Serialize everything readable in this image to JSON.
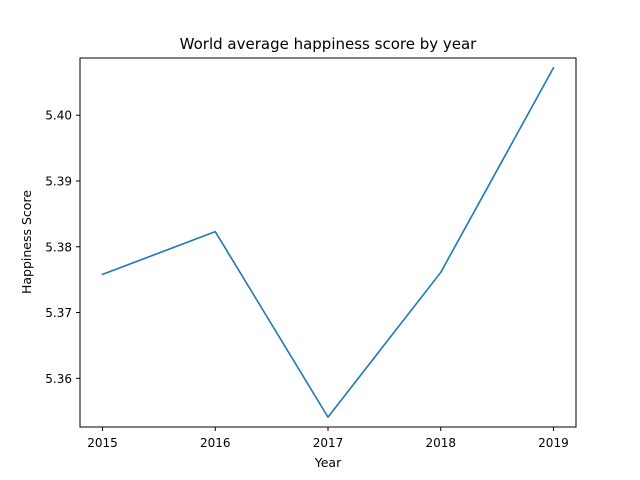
{
  "chart_data": {
    "type": "line",
    "title": "World average happiness score by year",
    "xlabel": "Year",
    "ylabel": "Happiness Score",
    "x": [
      2015,
      2016,
      2017,
      2018,
      2019
    ],
    "x_tick_labels": [
      "2015",
      "2016",
      "2017",
      "2018",
      "2019"
    ],
    "series": [
      {
        "values": [
          5.3758,
          5.3823,
          5.3541,
          5.3761,
          5.4072
        ],
        "color": "#1f77b4"
      }
    ],
    "xlim": [
      2014.8,
      2019.2
    ],
    "ylim": [
      5.3526,
      5.4087
    ],
    "y_ticks": [
      5.36,
      5.37,
      5.38,
      5.39,
      5.4
    ],
    "y_tick_labels": [
      "5.36",
      "5.37",
      "5.38",
      "5.39",
      "5.40"
    ],
    "grid": false,
    "legend": "none"
  }
}
